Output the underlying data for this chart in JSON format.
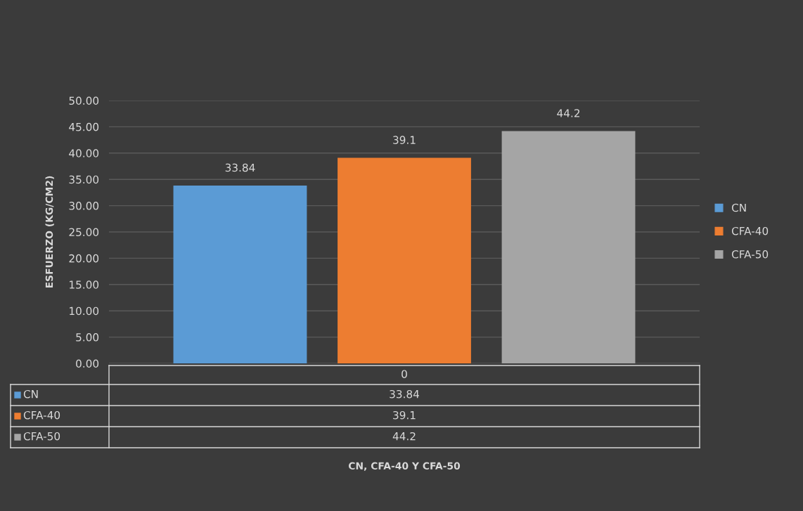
{
  "chart_data": {
    "type": "bar",
    "annotations": [
      "33.84",
      "39.1",
      "44.2",
      "CN, CFA-40 Y CFA-50"
    ],
    "ylabel": "ESFUERZO (KG/CM2)",
    "categories": [
      "0"
    ],
    "series": [
      {
        "name": "CN",
        "color": "#5b9bd5",
        "values": [
          33.84
        ]
      },
      {
        "name": "CFA-40",
        "color": "#ed7d31",
        "values": [
          39.1
        ]
      },
      {
        "name": "CFA-50",
        "color": "#a5a5a5",
        "values": [
          44.2
        ]
      }
    ],
    "ylim": [
      0,
      50
    ],
    "yticks": [
      {
        "value": 0,
        "label": "0.00"
      },
      {
        "value": 5,
        "label": "5.00"
      },
      {
        "value": 10,
        "label": "10.00"
      },
      {
        "value": 15,
        "label": "15.00"
      },
      {
        "value": 20,
        "label": "20.00"
      },
      {
        "value": 25,
        "label": "25.00"
      },
      {
        "value": 30,
        "label": "30.00"
      },
      {
        "value": 35,
        "label": "35.00"
      },
      {
        "value": 40,
        "label": "40.00"
      },
      {
        "value": 45,
        "label": "45.00"
      },
      {
        "value": 50,
        "label": "50.00"
      }
    ],
    "grid": "y",
    "legend": "right",
    "data_labels": true
  }
}
